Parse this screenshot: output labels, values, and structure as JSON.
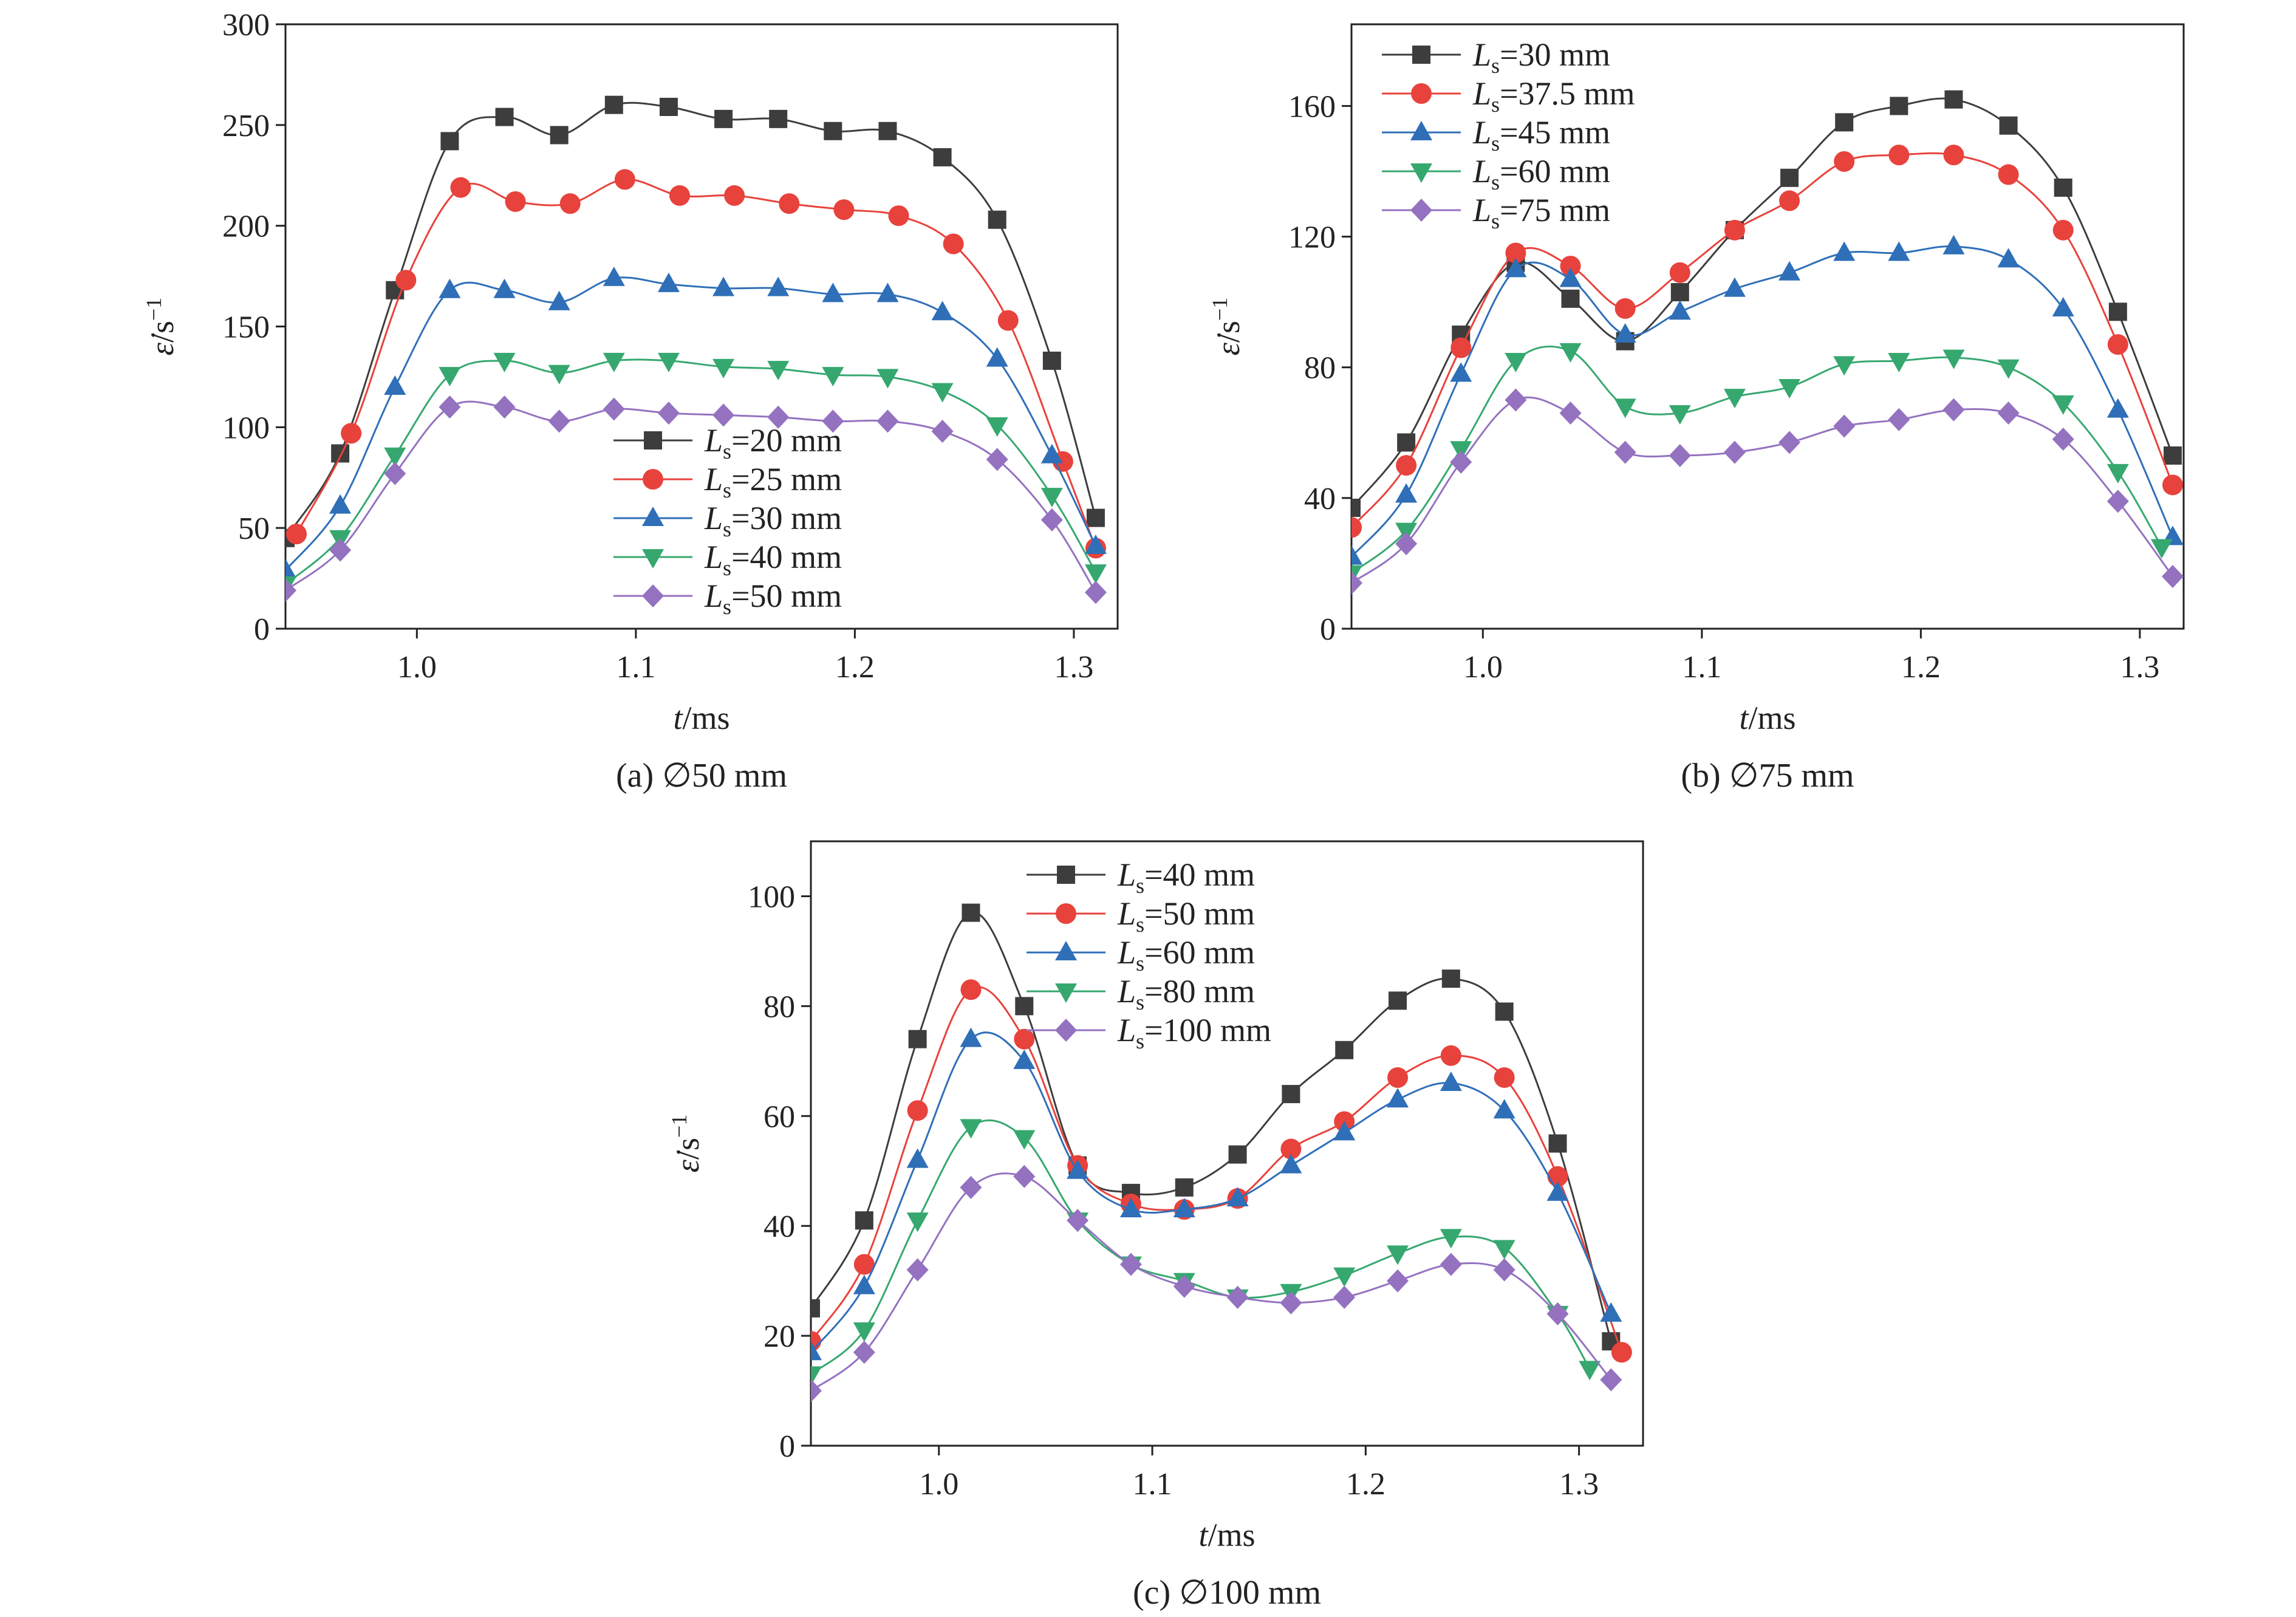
{
  "chart_data": [
    {
      "type": "line",
      "panel": "a",
      "caption": "(a) ∅50 mm",
      "xlabel_var": "t",
      "xlabel_unit": "/ms",
      "ylabel_var": "ε̇",
      "ylabel_unit": "/s",
      "ylabel_sup": "−1",
      "xlim": [
        0.94,
        1.32
      ],
      "ylim": [
        0,
        300
      ],
      "xticks": [
        1.0,
        1.1,
        1.2,
        1.3
      ],
      "xtick_labels": [
        "1.0",
        "1.1",
        "1.2",
        "1.3"
      ],
      "yticks": [
        0,
        50,
        100,
        150,
        200,
        250,
        300
      ],
      "ytick_labels": [
        "0",
        "50",
        "100",
        "150",
        "200",
        "250",
        "300"
      ],
      "legend_position": "bottom-center",
      "series": [
        {
          "name": "Ls=20 mm",
          "label_main": "=20 mm",
          "color": "#3d3d3d",
          "marker": "square",
          "x": [
            0.94,
            0.965,
            0.99,
            1.015,
            1.04,
            1.065,
            1.09,
            1.115,
            1.14,
            1.165,
            1.19,
            1.215,
            1.24,
            1.265,
            1.29,
            1.31
          ],
          "y": [
            45,
            87,
            168,
            242,
            254,
            245,
            260,
            259,
            253,
            253,
            247,
            247,
            234,
            203,
            133,
            55
          ]
        },
        {
          "name": "Ls=25 mm",
          "label_main": "=25 mm",
          "color": "#e8423c",
          "marker": "circle",
          "x": [
            0.945,
            0.97,
            0.995,
            1.02,
            1.045,
            1.07,
            1.095,
            1.12,
            1.145,
            1.17,
            1.195,
            1.22,
            1.245,
            1.27,
            1.295,
            1.31
          ],
          "y": [
            47,
            97,
            173,
            219,
            212,
            211,
            223,
            215,
            215,
            211,
            208,
            205,
            191,
            153,
            83,
            40
          ]
        },
        {
          "name": "Ls=30 mm",
          "label_main": "=30 mm",
          "color": "#2f6fb8",
          "marker": "triangle-up",
          "x": [
            0.94,
            0.965,
            0.99,
            1.015,
            1.04,
            1.065,
            1.09,
            1.115,
            1.14,
            1.165,
            1.19,
            1.215,
            1.24,
            1.265,
            1.29,
            1.31
          ],
          "y": [
            29,
            61,
            120,
            168,
            168,
            162,
            174,
            171,
            169,
            169,
            166,
            166,
            157,
            134,
            86,
            41
          ]
        },
        {
          "name": "Ls=40 mm",
          "label_main": "=40 mm",
          "color": "#36a86f",
          "marker": "triangle-down",
          "x": [
            0.94,
            0.965,
            0.99,
            1.015,
            1.04,
            1.065,
            1.09,
            1.115,
            1.14,
            1.165,
            1.19,
            1.215,
            1.24,
            1.265,
            1.29,
            1.31
          ],
          "y": [
            22,
            45,
            86,
            126,
            133,
            127,
            133,
            133,
            130,
            129,
            126,
            125,
            118,
            101,
            66,
            28
          ]
        },
        {
          "name": "Ls=50 mm",
          "label_main": "=50 mm",
          "color": "#9472c0",
          "marker": "diamond",
          "x": [
            0.94,
            0.965,
            0.99,
            1.015,
            1.04,
            1.065,
            1.09,
            1.115,
            1.14,
            1.165,
            1.19,
            1.215,
            1.24,
            1.265,
            1.29,
            1.31
          ],
          "y": [
            19,
            39,
            77,
            110,
            110,
            103,
            109,
            107,
            106,
            105,
            103,
            103,
            98,
            84,
            54,
            18
          ]
        }
      ]
    },
    {
      "type": "line",
      "panel": "b",
      "caption": "(b) ∅75 mm",
      "xlabel_var": "t",
      "xlabel_unit": "/ms",
      "ylabel_var": "ε̇",
      "ylabel_unit": "/s",
      "ylabel_sup": "−1",
      "xlim": [
        0.94,
        1.32
      ],
      "ylim": [
        0,
        185
      ],
      "xticks": [
        1.0,
        1.1,
        1.2,
        1.3
      ],
      "xtick_labels": [
        "1.0",
        "1.1",
        "1.2",
        "1.3"
      ],
      "yticks": [
        0,
        40,
        80,
        120,
        160
      ],
      "ytick_labels": [
        "0",
        "40",
        "80",
        "120",
        "160"
      ],
      "legend_position": "top-left",
      "series": [
        {
          "name": "Ls=30 mm",
          "label_main": "=30 mm",
          "color": "#3d3d3d",
          "marker": "square",
          "x": [
            0.94,
            0.965,
            0.99,
            1.015,
            1.04,
            1.065,
            1.09,
            1.115,
            1.14,
            1.165,
            1.19,
            1.215,
            1.24,
            1.265,
            1.29,
            1.315
          ],
          "y": [
            37,
            57,
            90,
            112,
            101,
            88,
            103,
            122,
            138,
            155,
            160,
            162,
            154,
            135,
            97,
            53
          ]
        },
        {
          "name": "Ls=37.5 mm",
          "label_main": "=37.5 mm",
          "color": "#e8423c",
          "marker": "circle",
          "x": [
            0.94,
            0.965,
            0.99,
            1.015,
            1.04,
            1.065,
            1.09,
            1.115,
            1.14,
            1.165,
            1.19,
            1.215,
            1.24,
            1.265,
            1.29,
            1.315
          ],
          "y": [
            31,
            50,
            86,
            115,
            111,
            98,
            109,
            122,
            131,
            143,
            145,
            145,
            139,
            122,
            87,
            44
          ]
        },
        {
          "name": "Ls=45 mm",
          "label_main": "=45 mm",
          "color": "#2f6fb8",
          "marker": "triangle-up",
          "x": [
            0.94,
            0.965,
            0.99,
            1.015,
            1.04,
            1.065,
            1.09,
            1.115,
            1.14,
            1.165,
            1.19,
            1.215,
            1.24,
            1.265,
            1.29,
            1.315
          ],
          "y": [
            22,
            41,
            78,
            110,
            107,
            90,
            97,
            104,
            109,
            115,
            115,
            117,
            113,
            98,
            67,
            28
          ]
        },
        {
          "name": "Ls=60 mm",
          "label_main": "=60 mm",
          "color": "#36a86f",
          "marker": "triangle-down",
          "x": [
            0.94,
            0.965,
            0.99,
            1.015,
            1.04,
            1.065,
            1.09,
            1.115,
            1.14,
            1.165,
            1.19,
            1.215,
            1.24,
            1.265,
            1.29,
            1.31
          ],
          "y": [
            17,
            30,
            55,
            82,
            85,
            68,
            66,
            71,
            74,
            81,
            82,
            83,
            80,
            69,
            48,
            25
          ]
        },
        {
          "name": "Ls=75 mm",
          "label_main": "=75 mm",
          "color": "#9472c0",
          "marker": "diamond",
          "x": [
            0.94,
            0.965,
            0.99,
            1.015,
            1.04,
            1.065,
            1.09,
            1.115,
            1.14,
            1.165,
            1.19,
            1.215,
            1.24,
            1.265,
            1.29,
            1.315
          ],
          "y": [
            14,
            26,
            51,
            70,
            66,
            54,
            53,
            54,
            57,
            62,
            64,
            67,
            66,
            58,
            39,
            16
          ]
        }
      ]
    },
    {
      "type": "line",
      "panel": "c",
      "caption": "(c) ∅100 mm",
      "xlabel_var": "t",
      "xlabel_unit": "/ms",
      "ylabel_var": "ε̇",
      "ylabel_unit": "/s",
      "ylabel_sup": "−1",
      "xlim": [
        0.94,
        1.33
      ],
      "ylim": [
        0,
        110
      ],
      "xticks": [
        1.0,
        1.1,
        1.2,
        1.3
      ],
      "xtick_labels": [
        "1.0",
        "1.1",
        "1.2",
        "1.3"
      ],
      "yticks": [
        0,
        20,
        40,
        60,
        80,
        100
      ],
      "ytick_labels": [
        "0",
        "20",
        "40",
        "60",
        "80",
        "100"
      ],
      "legend_position": "top-left",
      "series": [
        {
          "name": "Ls=40 mm",
          "label_main": "=40 mm",
          "color": "#3d3d3d",
          "marker": "square",
          "x": [
            0.94,
            0.965,
            0.99,
            1.015,
            1.04,
            1.065,
            1.09,
            1.115,
            1.14,
            1.165,
            1.19,
            1.215,
            1.24,
            1.265,
            1.29,
            1.315
          ],
          "y": [
            25,
            41,
            74,
            97,
            80,
            51,
            46,
            47,
            53,
            64,
            72,
            81,
            85,
            79,
            55,
            19
          ]
        },
        {
          "name": "Ls=50 mm",
          "label_main": "=50 mm",
          "color": "#e8423c",
          "marker": "circle",
          "x": [
            0.94,
            0.965,
            0.99,
            1.015,
            1.04,
            1.065,
            1.09,
            1.115,
            1.14,
            1.165,
            1.19,
            1.215,
            1.24,
            1.265,
            1.29,
            1.32
          ],
          "y": [
            19,
            33,
            61,
            83,
            74,
            51,
            44,
            43,
            45,
            54,
            59,
            67,
            71,
            67,
            49,
            17
          ]
        },
        {
          "name": "Ls=60 mm",
          "label_main": "=60 mm",
          "color": "#2f6fb8",
          "marker": "triangle-up",
          "x": [
            0.94,
            0.965,
            0.99,
            1.015,
            1.04,
            1.065,
            1.09,
            1.115,
            1.14,
            1.165,
            1.19,
            1.215,
            1.24,
            1.265,
            1.29,
            1.315
          ],
          "y": [
            17,
            29,
            52,
            74,
            70,
            50,
            43,
            43,
            45,
            51,
            57,
            63,
            66,
            61,
            46,
            24
          ]
        },
        {
          "name": "Ls=80 mm",
          "label_main": "=80 mm",
          "color": "#36a86f",
          "marker": "triangle-down",
          "x": [
            0.94,
            0.965,
            0.99,
            1.015,
            1.04,
            1.065,
            1.09,
            1.115,
            1.14,
            1.165,
            1.19,
            1.215,
            1.24,
            1.265,
            1.29,
            1.305
          ],
          "y": [
            13,
            21,
            41,
            58,
            56,
            41,
            33,
            30,
            27,
            28,
            31,
            35,
            38,
            36,
            24,
            14
          ]
        },
        {
          "name": "Ls=100 mm",
          "label_main": "=100 mm",
          "color": "#9472c0",
          "marker": "diamond",
          "x": [
            0.94,
            0.965,
            0.99,
            1.015,
            1.04,
            1.065,
            1.09,
            1.115,
            1.14,
            1.165,
            1.19,
            1.215,
            1.24,
            1.265,
            1.29,
            1.315
          ],
          "y": [
            10,
            17,
            32,
            47,
            49,
            41,
            33,
            29,
            27,
            26,
            27,
            30,
            33,
            32,
            24,
            12
          ]
        }
      ]
    }
  ]
}
